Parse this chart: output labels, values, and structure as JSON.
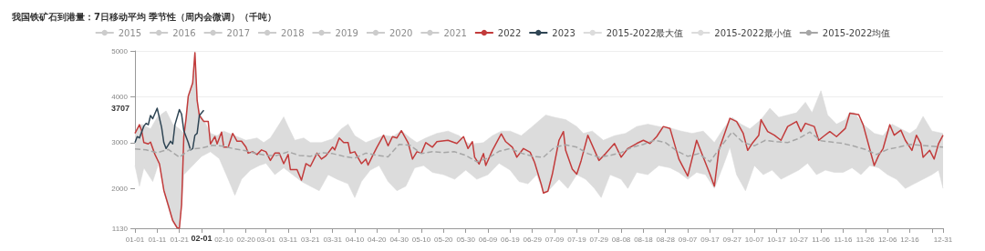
{
  "chart_data": {
    "type": "line",
    "title": "我国铁矿石到港量：7日移动平均 季节性（周内会微调）（千吨）",
    "legend": "top",
    "grid": "y",
    "marker": "none",
    "ylim": [
      1130,
      5000
    ],
    "yticks": [
      1130,
      2000,
      3000,
      4000,
      5000
    ],
    "xlim": [
      "--01-01",
      "--12-31"
    ],
    "xticks": [
      {
        "value": "--01-01",
        "label": "01-01"
      },
      {
        "value": "--01-11",
        "label": "01-11"
      },
      {
        "value": "--01-21",
        "label": "01-21"
      },
      {
        "value": "--01-31",
        "label": null
      },
      {
        "value": "--02-10",
        "label": "02-10"
      },
      {
        "value": "--02-20",
        "label": "02-20"
      },
      {
        "value": "--03-01",
        "label": "03-01"
      },
      {
        "value": "--03-11",
        "label": "03-11"
      },
      {
        "value": "--03-21",
        "label": "03-21"
      },
      {
        "value": "--03-31",
        "label": "03-31"
      },
      {
        "value": "--04-10",
        "label": "04-10"
      },
      {
        "value": "--04-20",
        "label": "04-20"
      },
      {
        "value": "--04-30",
        "label": "04-30"
      },
      {
        "value": "--05-10",
        "label": "05-10"
      },
      {
        "value": "--05-20",
        "label": "05-20"
      },
      {
        "value": "--05-30",
        "label": "05-30"
      },
      {
        "value": "--06-09",
        "label": "06-09"
      },
      {
        "value": "--06-19",
        "label": "06-19"
      },
      {
        "value": "--06-29",
        "label": "06-29"
      },
      {
        "value": "--07-09",
        "label": "07-09"
      },
      {
        "value": "--07-19",
        "label": "07-19"
      },
      {
        "value": "--07-29",
        "label": "07-29"
      },
      {
        "value": "--08-08",
        "label": "08-08"
      },
      {
        "value": "--08-18",
        "label": "08-18"
      },
      {
        "value": "--08-28",
        "label": "08-28"
      },
      {
        "value": "--09-07",
        "label": "09-07"
      },
      {
        "value": "--09-17",
        "label": "09-17"
      },
      {
        "value": "--09-27",
        "label": "09-27"
      },
      {
        "value": "--10-07",
        "label": "10-07"
      },
      {
        "value": "--10-17",
        "label": "10-17"
      },
      {
        "value": "--10-27",
        "label": "10-27"
      },
      {
        "value": "--11-06",
        "label": "11-06"
      },
      {
        "value": "--11-16",
        "label": "11-16"
      },
      {
        "value": "--11-26",
        "label": "11-26"
      },
      {
        "value": "--12-06",
        "label": "12-06"
      },
      {
        "value": "--12-16",
        "label": "12-16"
      },
      {
        "value": "--12-26",
        "label": null
      },
      {
        "value": "--12-31",
        "label": "12-31"
      }
    ],
    "annotations": [
      "3707",
      "02-01"
    ],
    "series": [
      {
        "name": "2015",
        "color": "#cccccc"
      },
      {
        "name": "2016",
        "color": "#cccccc"
      },
      {
        "name": "2017",
        "color": "#cccccc"
      },
      {
        "name": "2018",
        "color": "#cccccc"
      },
      {
        "name": "2019",
        "color": "#cccccc"
      },
      {
        "name": "2020",
        "color": "#cccccc"
      },
      {
        "name": "2021",
        "color": "#cccccc"
      },
      {
        "name": "2022",
        "color": "#c23b3b",
        "x": [
          "--01-01",
          "--01-03",
          "--01-04",
          "--01-05",
          "--01-07",
          "--01-08",
          "--01-10",
          "--01-12",
          "--01-14",
          "--01-16",
          "--01-18",
          "--01-20",
          "--01-21",
          "--01-22",
          "--01-23",
          "--01-24",
          "--01-25",
          "--01-27",
          "--01-28",
          "--01-29",
          "--01-30",
          "--02-01",
          "--02-03",
          "--02-04",
          "--02-06",
          "--02-07",
          "--02-09",
          "--02-10",
          "--02-12",
          "--02-14",
          "--02-16",
          "--02-18",
          "--02-20",
          "--02-21",
          "--02-23",
          "--02-25",
          "--02-27",
          "--03-01",
          "--03-03",
          "--03-05",
          "--03-07",
          "--03-09",
          "--03-11",
          "--03-12",
          "--03-15",
          "--03-17",
          "--03-19",
          "--03-21",
          "--03-24",
          "--03-26",
          "--03-28",
          "--03-31",
          "--04-01",
          "--04-03",
          "--04-05",
          "--04-07",
          "--04-08",
          "--04-10",
          "--04-11",
          "--04-13",
          "--04-15",
          "--04-16",
          "--04-18",
          "--04-20",
          "--04-23",
          "--04-25",
          "--04-27",
          "--04-29",
          "--05-01",
          "--05-04",
          "--05-06",
          "--05-08",
          "--05-10",
          "--05-12",
          "--05-15",
          "--05-17",
          "--05-22",
          "--05-26",
          "--05-29",
          "--05-31",
          "--06-02",
          "--06-03",
          "--06-05",
          "--06-07",
          "--06-08",
          "--06-11",
          "--06-15",
          "--06-17",
          "--06-20",
          "--06-22",
          "--06-25",
          "--06-28",
          "--06-30",
          "--07-03",
          "--07-04",
          "--07-06",
          "--07-08",
          "--07-11",
          "--07-13",
          "--07-14",
          "--07-17",
          "--07-19",
          "--07-21",
          "--07-24",
          "--07-27",
          "--07-29",
          "--08-01",
          "--08-05",
          "--08-08",
          "--08-11",
          "--08-15",
          "--08-18",
          "--08-21",
          "--08-24",
          "--08-27",
          "--08-30",
          "--09-03",
          "--09-07",
          "--09-11",
          "--09-14",
          "--09-17",
          "--09-19",
          "--09-21",
          "--09-26",
          "--09-29",
          "--10-02",
          "--10-04",
          "--10-06",
          "--10-09",
          "--10-10",
          "--10-13",
          "--10-16",
          "--10-19",
          "--10-22",
          "--10-26",
          "--10-28",
          "--10-30",
          "--11-03",
          "--11-05",
          "--11-07",
          "--11-10",
          "--11-13",
          "--11-17",
          "--11-19",
          "--11-23",
          "--11-25",
          "--11-30",
          "--12-02",
          "--12-04",
          "--12-07",
          "--12-09",
          "--12-12",
          "--12-14",
          "--12-17",
          "--12-19",
          "--12-21",
          "--12-22",
          "--12-25",
          "--12-27",
          "--12-29",
          "--12-31"
        ],
        "values": [
          3200,
          3390,
          3260,
          3000,
          2970,
          3010,
          2740,
          2540,
          1960,
          1630,
          1300,
          1140,
          1130,
          1650,
          3130,
          3520,
          4010,
          4300,
          4960,
          3920,
          3590,
          3460,
          3460,
          2970,
          3130,
          2970,
          3230,
          2900,
          2900,
          3200,
          3030,
          3030,
          2900,
          2770,
          2800,
          2740,
          2840,
          2800,
          2610,
          2770,
          2770,
          2540,
          2740,
          2410,
          2410,
          2180,
          2540,
          2480,
          2770,
          2640,
          2710,
          2900,
          2840,
          3100,
          3000,
          3000,
          2770,
          2800,
          2710,
          2540,
          2640,
          2510,
          2710,
          2900,
          3160,
          2930,
          3130,
          3100,
          3260,
          3000,
          2640,
          2800,
          2770,
          3000,
          2900,
          3020,
          3050,
          2980,
          3130,
          2870,
          3020,
          2680,
          2530,
          2760,
          2500,
          2830,
          3190,
          3020,
          2900,
          2680,
          2870,
          2790,
          2570,
          2090,
          1900,
          1940,
          2310,
          3050,
          3240,
          2830,
          2420,
          2310,
          2610,
          3160,
          2830,
          2610,
          2760,
          2980,
          2680,
          2870,
          2980,
          3050,
          2980,
          3130,
          3350,
          3310,
          2640,
          2270,
          3050,
          2680,
          2310,
          2050,
          2830,
          3530,
          3460,
          3200,
          2830,
          2980,
          3160,
          3500,
          3240,
          3160,
          3050,
          3350,
          3460,
          3240,
          3420,
          3350,
          3050,
          3130,
          3240,
          3130,
          3310,
          3640,
          3610,
          3390,
          2500,
          2720,
          2870,
          3390,
          3160,
          3270,
          3050,
          2830,
          3160,
          2980,
          2680,
          2830,
          2640,
          2980,
          3160
        ]
      },
      {
        "name": "2023",
        "color": "#2f4554",
        "x": [
          "--01-01",
          "--01-02",
          "--01-03",
          "--01-05",
          "--01-06",
          "--01-07",
          "--01-08",
          "--01-09",
          "--01-11",
          "--01-13",
          "--01-14",
          "--01-15",
          "--01-17",
          "--01-18",
          "--01-19",
          "--01-21",
          "--01-22",
          "--01-23",
          "--01-25",
          "--01-26",
          "--01-27",
          "--01-28",
          "--01-29",
          "--01-30",
          "--02-01"
        ],
        "values": [
          3000,
          3130,
          3100,
          3360,
          3420,
          3390,
          3590,
          3520,
          3750,
          3330,
          3000,
          2870,
          3030,
          2970,
          3390,
          3720,
          3620,
          3260,
          3000,
          2840,
          2870,
          3160,
          3200,
          3590,
          3707
        ]
      },
      {
        "name": "2015-2022最大值",
        "type": "area",
        "color": "#dcdcdc",
        "x": [
          "--01-01",
          "--01-04",
          "--01-08",
          "--01-11",
          "--01-15",
          "--01-18",
          "--01-21",
          "--01-23",
          "--01-25",
          "--01-27",
          "--01-28",
          "--01-29",
          "--01-30",
          "--02-01",
          "--02-04",
          "--02-07",
          "--02-10",
          "--02-15",
          "--02-20",
          "--02-25",
          "--02-28",
          "--03-03",
          "--03-07",
          "--03-09",
          "--03-11",
          "--03-14",
          "--03-18",
          "--03-21",
          "--03-26",
          "--03-31",
          "--04-04",
          "--04-07",
          "--04-10",
          "--04-15",
          "--04-20",
          "--04-23",
          "--04-27",
          "--05-01",
          "--05-05",
          "--05-08",
          "--05-12",
          "--05-17",
          "--05-22",
          "--05-27",
          "--06-01",
          "--06-07",
          "--06-11",
          "--06-15",
          "--06-19",
          "--06-24",
          "--06-29",
          "--07-05",
          "--07-09",
          "--07-14",
          "--07-19",
          "--07-22",
          "--07-26",
          "--07-31",
          "--08-05",
          "--08-10",
          "--08-15",
          "--08-20",
          "--08-25",
          "--08-30",
          "--09-04",
          "--09-09",
          "--09-14",
          "--09-19",
          "--09-23",
          "--09-27",
          "--10-01",
          "--10-05",
          "--10-10",
          "--10-14",
          "--10-18",
          "--10-22",
          "--10-26",
          "--10-30",
          "--11-02",
          "--11-06",
          "--11-09",
          "--11-13",
          "--11-17",
          "--11-19",
          "--11-21",
          "--11-25",
          "--11-30",
          "--12-04",
          "--12-08",
          "--12-12",
          "--12-16",
          "--12-19",
          "--12-22",
          "--12-26",
          "--12-31"
        ],
        "values": [
          3230,
          3400,
          3300,
          3550,
          3690,
          3400,
          3300,
          3200,
          4050,
          4340,
          4990,
          3960,
          3640,
          3490,
          3200,
          3150,
          3250,
          3150,
          3050,
          3100,
          3000,
          3100,
          3400,
          3560,
          3350,
          3050,
          3100,
          3000,
          3000,
          3080,
          3300,
          3400,
          3150,
          3000,
          3100,
          3160,
          3130,
          3260,
          3100,
          3000,
          3100,
          3200,
          3250,
          3150,
          2950,
          3000,
          3150,
          3250,
          3250,
          3150,
          3350,
          3600,
          3550,
          3500,
          3350,
          3200,
          3250,
          3050,
          3150,
          3200,
          3350,
          3400,
          3350,
          3320,
          3250,
          3200,
          3250,
          3000,
          3300,
          3550,
          3400,
          3300,
          3500,
          3750,
          3550,
          3600,
          3650,
          3880,
          3650,
          4130,
          3600,
          3400,
          3500,
          3660,
          3650,
          3400,
          3200,
          3150,
          3400,
          3300,
          3200,
          3300,
          3570,
          3250,
          3200
        ]
      },
      {
        "name": "2015-2022最小值",
        "type": "area",
        "color": "#dcdcdc",
        "x": [
          "--01-01",
          "--01-03",
          "--01-05",
          "--01-09",
          "--01-12",
          "--01-14",
          "--01-16",
          "--01-18",
          "--01-20",
          "--01-21",
          "--01-22",
          "--01-23",
          "--01-27",
          "--01-31",
          "--02-04",
          "--02-08",
          "--02-12",
          "--02-15",
          "--02-18",
          "--02-22",
          "--02-26",
          "--03-01",
          "--03-05",
          "--03-09",
          "--03-13",
          "--03-17",
          "--03-21",
          "--03-25",
          "--03-29",
          "--04-02",
          "--04-07",
          "--04-10",
          "--04-13",
          "--04-17",
          "--04-21",
          "--04-25",
          "--04-29",
          "--05-03",
          "--05-07",
          "--05-11",
          "--05-15",
          "--05-20",
          "--05-25",
          "--05-30",
          "--06-04",
          "--06-09",
          "--06-14",
          "--06-19",
          "--06-23",
          "--06-27",
          "--07-01",
          "--07-04",
          "--07-06",
          "--07-11",
          "--07-15",
          "--07-19",
          "--07-23",
          "--07-27",
          "--07-30",
          "--08-03",
          "--08-08",
          "--08-11",
          "--08-15",
          "--08-20",
          "--08-25",
          "--08-30",
          "--09-03",
          "--09-07",
          "--09-11",
          "--09-15",
          "--09-19",
          "--09-23",
          "--09-26",
          "--09-29",
          "--10-03",
          "--10-07",
          "--10-11",
          "--10-15",
          "--10-19",
          "--10-23",
          "--10-27",
          "--10-31",
          "--11-04",
          "--11-08",
          "--11-12",
          "--11-16",
          "--11-20",
          "--11-24",
          "--11-28",
          "--12-02",
          "--12-06",
          "--12-10",
          "--12-14",
          "--12-18",
          "--12-22",
          "--12-26",
          "--12-29",
          "--12-31"
        ],
        "values": [
          2500,
          2050,
          2450,
          2150,
          2600,
          1920,
          1590,
          1260,
          1130,
          1130,
          1600,
          2300,
          2500,
          2700,
          2800,
          2650,
          2200,
          1850,
          2200,
          2400,
          2500,
          2550,
          2300,
          2450,
          2300,
          2150,
          2050,
          1950,
          2300,
          2200,
          2100,
          1800,
          2150,
          2400,
          2500,
          2150,
          1950,
          2050,
          2450,
          2500,
          2350,
          2300,
          2200,
          2400,
          2200,
          2300,
          2550,
          2400,
          2150,
          2100,
          2300,
          1900,
          1940,
          2200,
          2000,
          2300,
          2200,
          2000,
          1800,
          2300,
          2200,
          2000,
          2350,
          2300,
          2500,
          2450,
          2350,
          2200,
          2350,
          2300,
          2000,
          2500,
          2900,
          2300,
          1950,
          2500,
          2300,
          2400,
          2200,
          2300,
          2400,
          2550,
          2300,
          2400,
          2350,
          2350,
          2450,
          2300,
          2500,
          2450,
          2300,
          2200,
          2000,
          2100,
          2200,
          2300,
          2400,
          2000
        ]
      },
      {
        "name": "2015-2022均值",
        "color": "#a6a6a6",
        "line_style": "dashed",
        "x": [
          "--01-01",
          "--01-06",
          "--01-11",
          "--01-16",
          "--01-21",
          "--01-26",
          "--01-31",
          "--02-05",
          "--02-10",
          "--02-15",
          "--02-20",
          "--02-25",
          "--03-01",
          "--03-06",
          "--03-11",
          "--03-16",
          "--03-21",
          "--03-26",
          "--03-31",
          "--04-05",
          "--04-10",
          "--04-15",
          "--04-20",
          "--04-25",
          "--04-30",
          "--05-05",
          "--05-10",
          "--05-15",
          "--05-20",
          "--05-25",
          "--05-30",
          "--06-04",
          "--06-09",
          "--06-14",
          "--06-19",
          "--06-24",
          "--06-29",
          "--07-04",
          "--07-09",
          "--07-14",
          "--07-19",
          "--07-24",
          "--07-29",
          "--08-03",
          "--08-08",
          "--08-13",
          "--08-18",
          "--08-23",
          "--08-28",
          "--09-02",
          "--09-07",
          "--09-12",
          "--09-17",
          "--09-22",
          "--09-27",
          "--10-02",
          "--10-07",
          "--10-12",
          "--10-17",
          "--10-22",
          "--10-27",
          "--11-01",
          "--11-06",
          "--11-11",
          "--11-16",
          "--11-21",
          "--11-26",
          "--12-01",
          "--12-06",
          "--12-11",
          "--12-16",
          "--12-21",
          "--12-26",
          "--12-31"
        ],
        "values": [
          2860,
          2840,
          2780,
          2850,
          2680,
          2860,
          2880,
          2940,
          2920,
          2860,
          2820,
          2760,
          2720,
          2720,
          2800,
          2720,
          2700,
          2780,
          2760,
          2700,
          2660,
          2770,
          2720,
          2690,
          2960,
          2940,
          2760,
          2800,
          2780,
          2800,
          2720,
          2580,
          2660,
          2810,
          2870,
          2770,
          2700,
          2680,
          2900,
          2950,
          2900,
          2760,
          2680,
          2720,
          2780,
          2900,
          2960,
          3050,
          3000,
          2820,
          2700,
          2760,
          2580,
          2920,
          3230,
          3000,
          2930,
          3050,
          3020,
          3000,
          3090,
          3230,
          3040,
          3010,
          2980,
          2920,
          2850,
          2740,
          2850,
          2900,
          2960,
          2940,
          2920,
          2900
        ]
      }
    ]
  }
}
